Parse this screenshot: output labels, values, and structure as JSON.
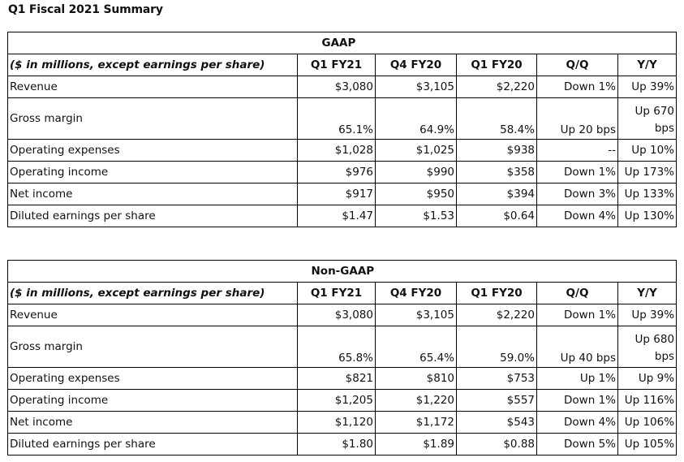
{
  "title": "Q1 Fiscal 2021 Summary",
  "gaap": {
    "group": "GAAP",
    "header": [
      "($ in millions, except earnings per share)",
      "Q1 FY21",
      "Q4 FY20",
      "Q1 FY20",
      "Q/Q",
      "Y/Y"
    ],
    "rows": [
      [
        "Revenue",
        "$3,080",
        "$3,105",
        "$2,220",
        "Down 1%",
        "Up 39%"
      ],
      [
        "Gross margin",
        "65.1%",
        "64.9%",
        "58.4%",
        "Up 20 bps",
        "Up 670 bps"
      ],
      [
        "Operating expenses",
        "$1,028",
        "$1,025",
        "$938",
        "--",
        "Up 10%"
      ],
      [
        "Operating income",
        "$976",
        "$990",
        "$358",
        "Down 1%",
        "Up 173%"
      ],
      [
        "Net income",
        "$917",
        "$950",
        "$394",
        "Down 3%",
        "Up 133%"
      ],
      [
        "Diluted earnings per share",
        "$1.47",
        "$1.53",
        "$0.64",
        "Down 4%",
        "Up 130%"
      ]
    ]
  },
  "nongaap": {
    "group": "Non-GAAP",
    "header": [
      "($ in millions, except earnings per share)",
      "Q1 FY21",
      "Q4 FY20",
      "Q1 FY20",
      "Q/Q",
      "Y/Y"
    ],
    "rows": [
      [
        "Revenue",
        "$3,080",
        "$3,105",
        "$2,220",
        "Down 1%",
        "Up 39%"
      ],
      [
        "Gross margin",
        "65.8%",
        "65.4%",
        "59.0%",
        "Up 40 bps",
        "Up 680 bps"
      ],
      [
        "Operating expenses",
        "$821",
        "$810",
        "$753",
        "Up 1%",
        "Up 9%"
      ],
      [
        "Operating income",
        "$1,205",
        "$1,220",
        "$557",
        "Down 1%",
        "Up 116%"
      ],
      [
        "Net income",
        "$1,120",
        "$1,172",
        "$543",
        "Down 4%",
        "Up 106%"
      ],
      [
        "Diluted earnings per share",
        "$1.80",
        "$1.89",
        "$0.88",
        "Down 5%",
        "Up 105%"
      ]
    ]
  }
}
